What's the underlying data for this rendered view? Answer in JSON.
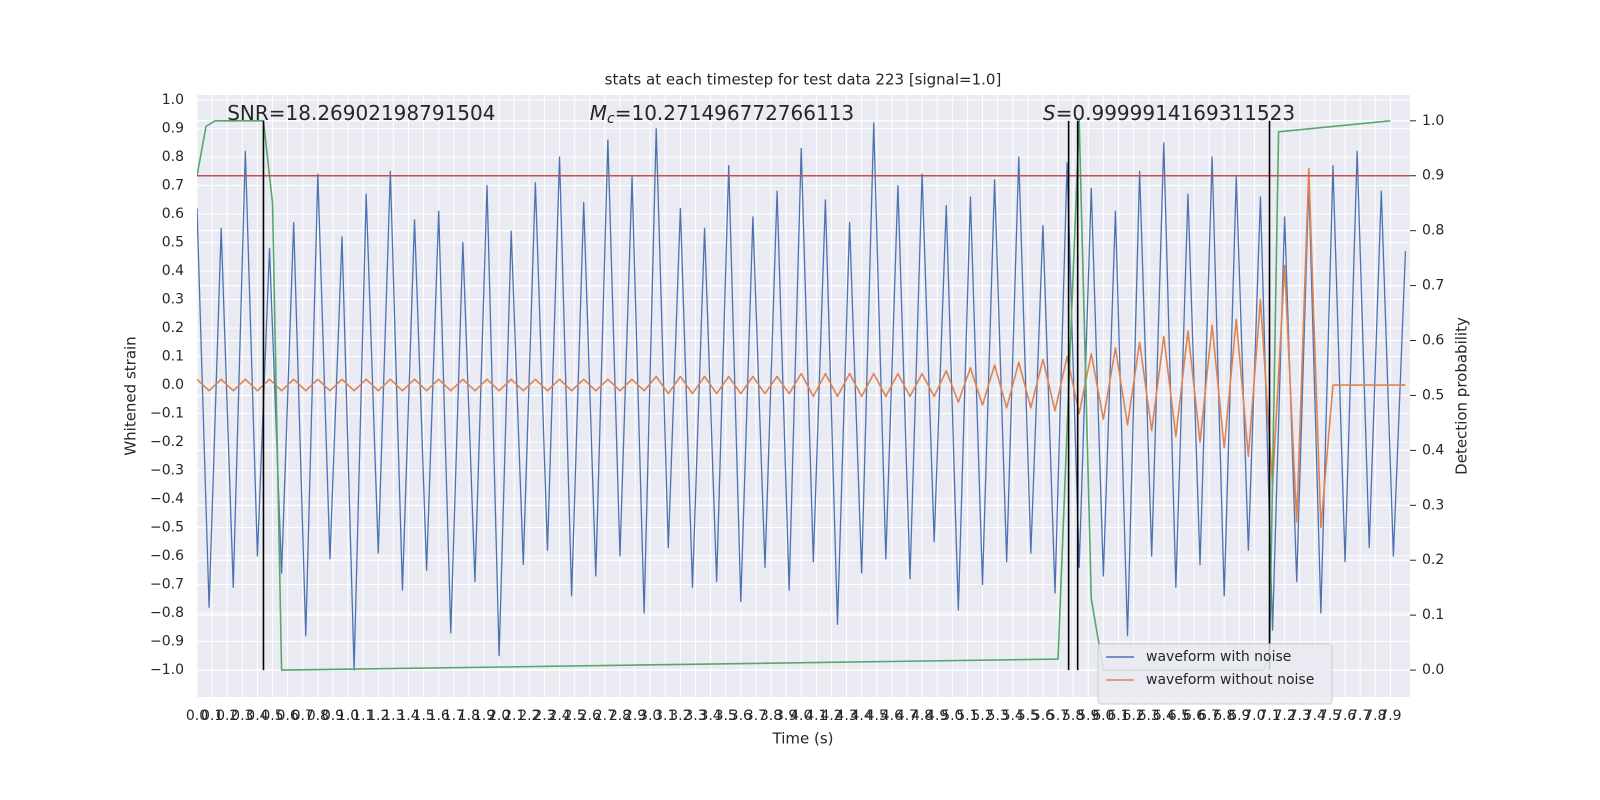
{
  "chart_data": {
    "type": "line",
    "title": "stats at each timestep for test data 223 [signal=1.0]",
    "xlabel": "Time (s)",
    "ylabel": "Whitened strain",
    "y2label": "Detection probability",
    "xlim": [
      0,
      8.03
    ],
    "ylim": [
      -1.095,
      1.018
    ],
    "y2lim": [
      -0.049,
      1.047
    ],
    "grid": true,
    "legend": "lower right",
    "xticks": [
      {
        "value": 0,
        "label": "0.0"
      },
      0.1,
      0.2,
      0.3,
      0.4,
      0.5,
      0.6,
      0.7,
      0.8,
      0.9,
      {
        "value": 1,
        "label": "1.0"
      },
      1.1,
      1.2,
      1.3,
      1.4,
      1.5,
      1.6,
      1.7,
      1.8,
      1.9,
      {
        "value": 2,
        "label": "2.0"
      },
      2.1,
      2.2,
      2.3,
      2.4,
      2.5,
      2.6,
      2.7,
      2.8,
      2.9,
      {
        "value": 3,
        "label": "3.0"
      },
      3.1,
      3.2,
      3.3,
      3.4,
      3.5,
      3.6,
      3.7,
      3.8,
      3.9,
      {
        "value": 4,
        "label": "4.0"
      },
      4.1,
      4.2,
      4.3,
      4.4,
      4.5,
      4.6,
      4.7,
      4.8,
      4.9,
      {
        "value": 5,
        "label": "5.0"
      },
      5.1,
      5.2,
      5.3,
      5.4,
      5.5,
      5.6,
      5.7,
      5.8,
      5.9,
      {
        "value": 6,
        "label": "6.0"
      },
      6.1,
      6.2,
      6.3,
      6.4,
      6.5,
      6.6,
      6.7,
      6.8,
      6.9,
      {
        "value": 7,
        "label": "7.0"
      },
      7.1,
      7.2,
      7.3,
      7.4,
      7.5,
      7.6,
      7.7,
      7.8,
      7.9
    ],
    "yticks": [
      {
        "value": -1,
        "label": "−1.0"
      },
      {
        "value": -0.9,
        "label": "−0.9"
      },
      {
        "value": -0.8,
        "label": "−0.8"
      },
      {
        "value": -0.7,
        "label": "−0.7"
      },
      {
        "value": -0.6,
        "label": "−0.6"
      },
      {
        "value": -0.5,
        "label": "−0.5"
      },
      {
        "value": -0.4,
        "label": "−0.4"
      },
      {
        "value": -0.3,
        "label": "−0.3"
      },
      {
        "value": -0.2,
        "label": "−0.2"
      },
      {
        "value": -0.1,
        "label": "−0.1"
      },
      {
        "value": 0,
        "label": "0.0"
      },
      0.1,
      0.2,
      0.3,
      0.4,
      0.5,
      0.6,
      0.7,
      0.8,
      0.9,
      {
        "value": 1,
        "label": "1.0"
      }
    ],
    "y2ticks": [
      {
        "value": 0,
        "label": "0.0"
      },
      0.1,
      0.2,
      0.3,
      0.4,
      0.5,
      0.6,
      0.7,
      0.8,
      0.9,
      {
        "value": 1,
        "label": "1.0"
      }
    ],
    "x": [
      0,
      0.08,
      0.16,
      0.24,
      0.32,
      0.4,
      0.48,
      0.56,
      0.64,
      0.72,
      0.8,
      0.88,
      0.96,
      1.04,
      1.12,
      1.2,
      1.28,
      1.36,
      1.44,
      1.52,
      1.6,
      1.68,
      1.76,
      1.84,
      1.92,
      2.0,
      2.08,
      2.16,
      2.24,
      2.32,
      2.4,
      2.48,
      2.56,
      2.64,
      2.72,
      2.8,
      2.88,
      2.96,
      3.04,
      3.12,
      3.2,
      3.28,
      3.36,
      3.44,
      3.52,
      3.6,
      3.68,
      3.76,
      3.84,
      3.92,
      4.0,
      4.08,
      4.16,
      4.24,
      4.32,
      4.4,
      4.48,
      4.56,
      4.64,
      4.72,
      4.8,
      4.88,
      4.96,
      5.04,
      5.12,
      5.2,
      5.28,
      5.36,
      5.44,
      5.52,
      5.6,
      5.68,
      5.76,
      5.84,
      5.92,
      6.0,
      6.08,
      6.16,
      6.24,
      6.32,
      6.4,
      6.48,
      6.56,
      6.64,
      6.72,
      6.8,
      6.88,
      6.96,
      7.04,
      7.12,
      7.2,
      7.28,
      7.36,
      7.44,
      7.52,
      7.6,
      7.68,
      7.76,
      7.84,
      7.92,
      8.0
    ],
    "series": [
      {
        "name": "waveform with noise",
        "color": "#4c72b0",
        "values": [
          0.62,
          -0.78,
          0.55,
          -0.71,
          0.82,
          -0.6,
          0.48,
          -0.66,
          0.57,
          -0.88,
          0.74,
          -0.61,
          0.52,
          -1.0,
          0.67,
          -0.59,
          0.75,
          -0.72,
          0.58,
          -0.65,
          0.61,
          -0.87,
          0.5,
          -0.69,
          0.7,
          -0.95,
          0.54,
          -0.63,
          0.71,
          -0.58,
          0.8,
          -0.74,
          0.64,
          -0.67,
          0.86,
          -0.6,
          0.73,
          -0.8,
          0.9,
          -0.57,
          0.62,
          -0.71,
          0.55,
          -0.69,
          0.77,
          -0.76,
          0.59,
          -0.64,
          0.68,
          -0.72,
          0.83,
          -0.62,
          0.65,
          -0.84,
          0.57,
          -0.66,
          0.92,
          -0.61,
          0.7,
          -0.68,
          0.74,
          -0.55,
          0.63,
          -0.79,
          0.66,
          -0.7,
          0.72,
          -0.62,
          0.8,
          -0.59,
          0.56,
          -0.73,
          0.78,
          -0.64,
          0.69,
          -0.67,
          0.61,
          -0.88,
          0.75,
          -0.6,
          0.85,
          -0.71,
          0.67,
          -0.63,
          0.8,
          -0.74,
          0.73,
          -0.58,
          0.66,
          -0.86,
          0.59,
          -0.69,
          0.71,
          -0.8,
          0.77,
          -0.62,
          0.82,
          -0.57,
          0.68,
          -0.6,
          0.47
        ]
      },
      {
        "name": "waveform without noise",
        "color": "#dd8452",
        "values": [
          0.02,
          -0.02,
          0.02,
          -0.02,
          0.02,
          -0.02,
          0.02,
          -0.02,
          0.02,
          -0.02,
          0.02,
          -0.02,
          0.02,
          -0.02,
          0.02,
          -0.02,
          0.02,
          -0.02,
          0.02,
          -0.02,
          0.02,
          -0.02,
          0.02,
          -0.02,
          0.02,
          -0.02,
          0.02,
          -0.02,
          0.02,
          -0.02,
          0.02,
          -0.02,
          0.02,
          -0.02,
          0.02,
          -0.02,
          0.02,
          -0.02,
          0.03,
          -0.03,
          0.03,
          -0.03,
          0.03,
          -0.03,
          0.03,
          -0.03,
          0.03,
          -0.03,
          0.03,
          -0.03,
          0.04,
          -0.04,
          0.04,
          -0.04,
          0.04,
          -0.04,
          0.04,
          -0.04,
          0.04,
          -0.04,
          0.04,
          -0.04,
          0.05,
          -0.06,
          0.06,
          -0.07,
          0.07,
          -0.08,
          0.08,
          -0.08,
          0.09,
          -0.09,
          0.1,
          -0.1,
          0.11,
          -0.12,
          0.13,
          -0.14,
          0.15,
          -0.16,
          0.17,
          -0.18,
          0.19,
          -0.2,
          0.21,
          -0.22,
          0.23,
          -0.25,
          0.3,
          -0.35,
          0.42,
          -0.48,
          0.76,
          -0.5,
          0,
          0,
          0,
          0,
          0,
          0,
          0
        ]
      },
      {
        "color": "#55a868",
        "axis": "y2",
        "x": [
          0,
          0.06,
          0.12,
          0.44,
          0.5,
          0.56,
          5.7,
          5.84,
          5.92,
          6.0,
          7.06,
          7.1,
          7.16,
          7.9
        ],
        "values": [
          0.9,
          0.99,
          1.0,
          1.0,
          0.85,
          0.0,
          0.02,
          1.0,
          0.13,
          0.0,
          0.0,
          0.03,
          0.98,
          1.0
        ]
      }
    ],
    "hline": {
      "y": 0.9,
      "axis": "y2",
      "color": "#c44e52"
    },
    "vlines": {
      "x": [
        0.44,
        5.77,
        5.83,
        7.1
      ],
      "ymin": 0,
      "ymax": 1,
      "axis": "y2",
      "color": "#000000"
    },
    "annotations": [
      {
        "text": "SNR=18.26902198791504",
        "x": 0.2
      },
      {
        "symbol": "M",
        "subscript": "c",
        "text": "=10.271496772766113",
        "x": 2.6
      },
      {
        "symbol": "S",
        "text": "=0.9999914169311523",
        "x": 5.6
      }
    ]
  }
}
